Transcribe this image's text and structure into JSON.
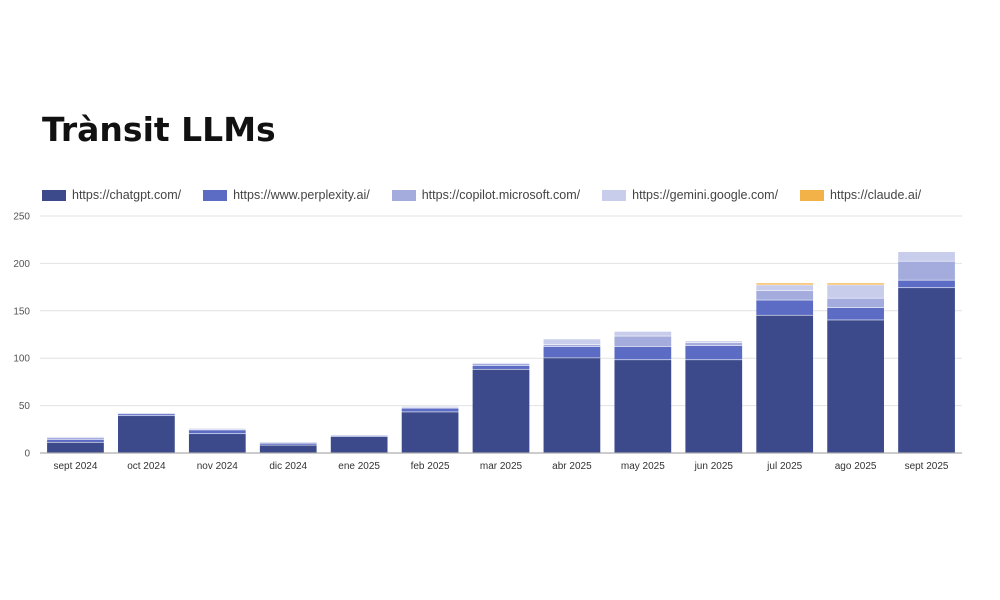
{
  "chart_data": {
    "type": "bar",
    "stacked": true,
    "title": "Trànsit LLMs",
    "xlabel": "",
    "ylabel": "",
    "ylim": [
      0,
      250
    ],
    "yticks": [
      0,
      50,
      100,
      150,
      200,
      250
    ],
    "grid": true,
    "legend_position": "top",
    "categories": [
      "sept 2024",
      "oct 2024",
      "nov 2024",
      "dic 2024",
      "ene 2025",
      "feb 2025",
      "mar 2025",
      "abr 2025",
      "may 2025",
      "jun 2025",
      "jul 2025",
      "ago 2025",
      "sept 2025"
    ],
    "series": [
      {
        "name": "https://chatgpt.com/",
        "color": "#3c4a8c",
        "values": [
          11,
          39,
          20,
          8,
          17,
          43,
          88,
          100,
          98,
          98,
          145,
          140,
          174
        ]
      },
      {
        "name": "https://www.perplexity.ai/",
        "color": "#5c6cc4",
        "values": [
          3,
          2,
          4,
          2,
          1,
          4,
          4,
          12,
          14,
          15,
          16,
          13,
          8
        ]
      },
      {
        "name": "https://copilot.microsoft.com/",
        "color": "#a3acdd",
        "values": [
          2,
          1,
          1,
          1,
          1,
          1,
          2,
          2,
          11,
          3,
          10,
          10,
          20
        ]
      },
      {
        "name": "https://gemini.google.com/",
        "color": "#c9cdec",
        "values": [
          1,
          0,
          1,
          0,
          0,
          1,
          1,
          6,
          5,
          2,
          6,
          14,
          10
        ]
      },
      {
        "name": "https://claude.ai/",
        "color": "#f2b247",
        "values": [
          0,
          0,
          0,
          0,
          0,
          0,
          0,
          0,
          0,
          0,
          2,
          2,
          0
        ]
      }
    ]
  }
}
